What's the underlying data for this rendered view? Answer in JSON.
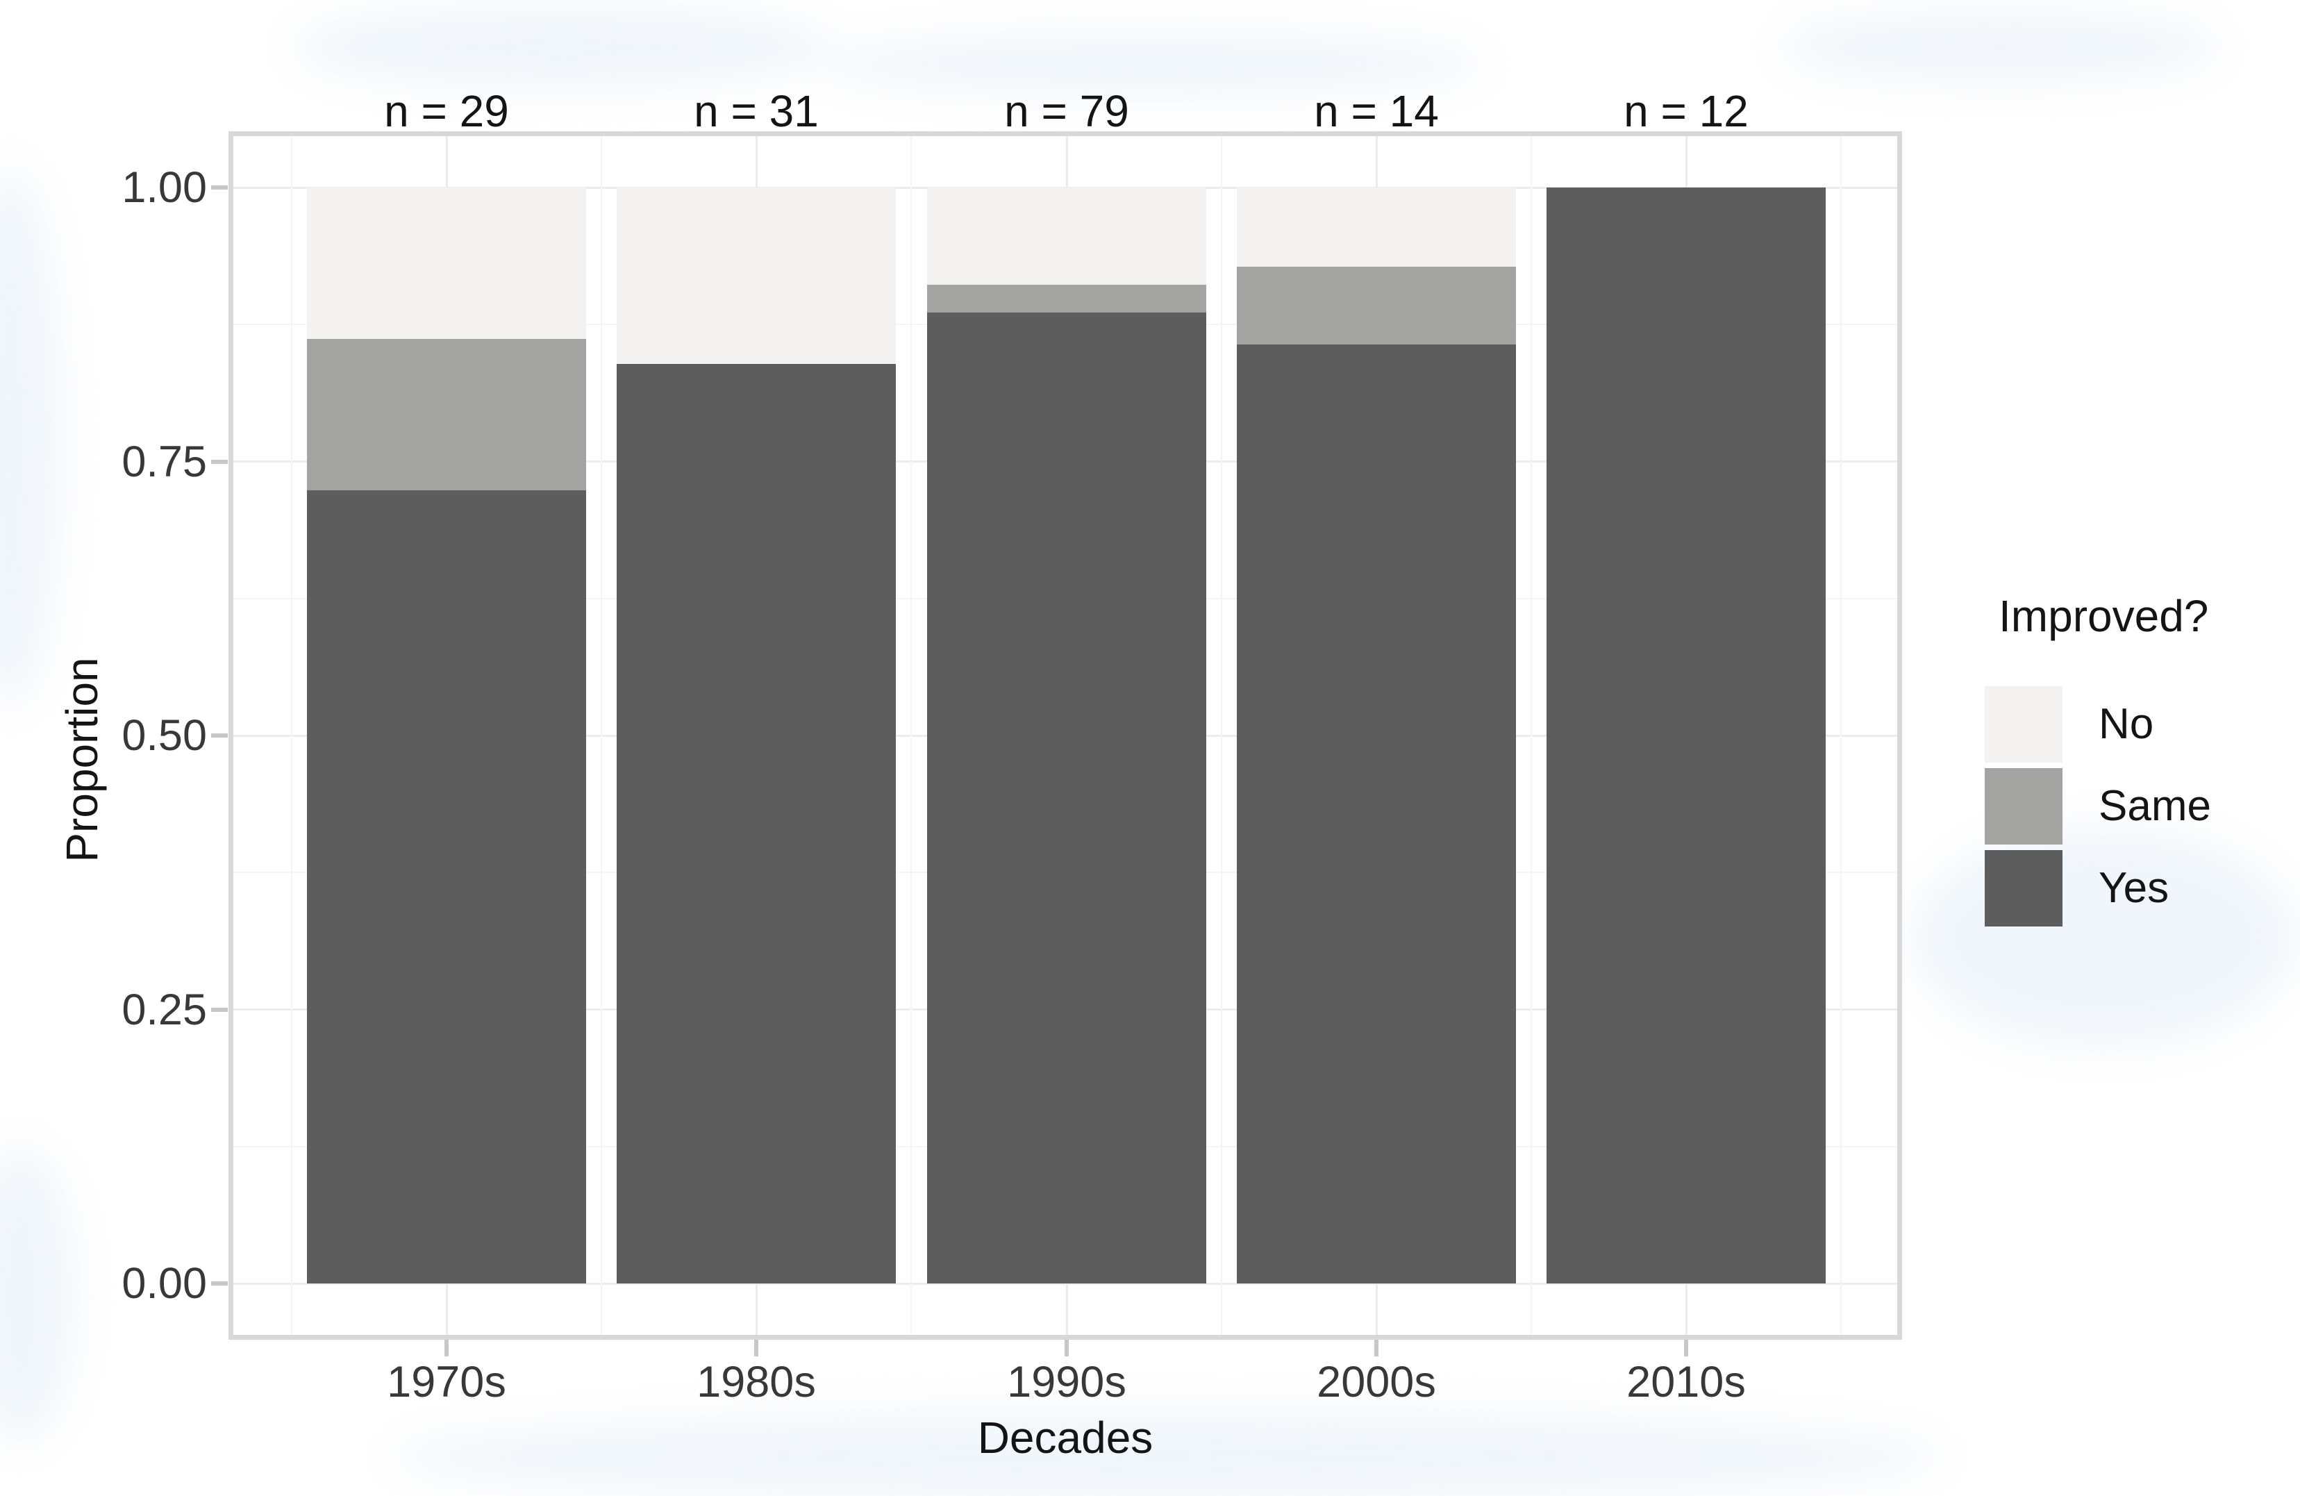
{
  "chart_data": {
    "type": "bar",
    "stacked": true,
    "title": "",
    "xlabel": "Decades",
    "ylabel": "Proportion",
    "ylim": [
      0,
      1
    ],
    "grid": true,
    "legend_position": "right",
    "categories": [
      "1970s",
      "1980s",
      "1990s",
      "2000s",
      "2010s"
    ],
    "counts": [
      29,
      31,
      79,
      14,
      12
    ],
    "bar_labels": [
      "n = 29",
      "n = 31",
      "n = 79",
      "n = 14",
      "n = 12"
    ],
    "stack_order_bottom_to_top": [
      "Yes",
      "Same",
      "No"
    ],
    "series": [
      {
        "name": "Yes",
        "color": "#5d5d5d",
        "values": [
          0.724,
          0.839,
          0.886,
          0.857,
          1.0
        ]
      },
      {
        "name": "Same",
        "color": "#a3a3a2",
        "values": [
          0.138,
          0.0,
          0.025,
          0.071,
          0.0
        ]
      },
      {
        "name": "No",
        "color": "#f3f2f0",
        "values": [
          0.138,
          0.161,
          0.089,
          0.072,
          0.0
        ]
      }
    ],
    "y_ticks": [
      "1.00",
      "0.75",
      "0.50",
      "0.25",
      "0.00"
    ],
    "y_tick_values": [
      1.0,
      0.75,
      0.5,
      0.25,
      0.0
    ],
    "y_minor_tick_values": [
      0.875,
      0.625,
      0.375,
      0.125
    ]
  },
  "axes": {
    "y": {
      "title": "Proportion"
    },
    "x": {
      "title": "Decades"
    }
  },
  "legend": {
    "title": "Improved?",
    "entries": [
      {
        "label": "No",
        "color": "#f3f2f0"
      },
      {
        "label": "Same",
        "color": "#a3a3a2"
      },
      {
        "label": "Yes",
        "color": "#5d5d5d"
      }
    ]
  },
  "style_colors": {
    "panel_border": "#d8d8d8",
    "grid_major": "#ececec",
    "grid_minor": "#f5f5f5",
    "tick_mark": "#c7c7c7",
    "tick_label": "#383838",
    "title_text": "#141414"
  }
}
